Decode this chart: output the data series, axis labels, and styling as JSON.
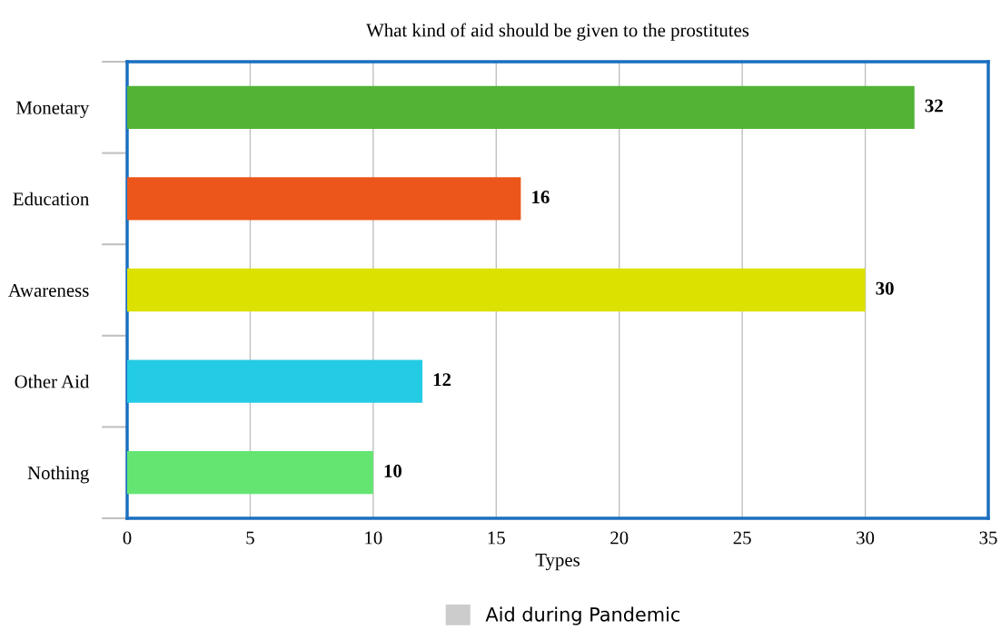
{
  "chart_data": {
    "type": "bar",
    "orientation": "horizontal",
    "title": "What kind of aid should be given to the prostitutes",
    "xlabel": "Types",
    "categories": [
      "Monetary",
      "Education",
      "Awareness",
      "Other Aid",
      "Nothing"
    ],
    "series": [
      {
        "name": "Aid during Pandemic",
        "color": "#cccccc",
        "values": [
          32,
          16,
          30,
          12,
          10
        ],
        "colors": [
          "#52b335",
          "#ec561b",
          "#dde100",
          "#24cbe5",
          "#64e572"
        ]
      }
    ],
    "xlim": [
      0,
      35
    ],
    "xticks": [
      0,
      5,
      10,
      15,
      20,
      25,
      30,
      35
    ],
    "grid": "x",
    "legend": "bottom",
    "data_labels": true
  }
}
